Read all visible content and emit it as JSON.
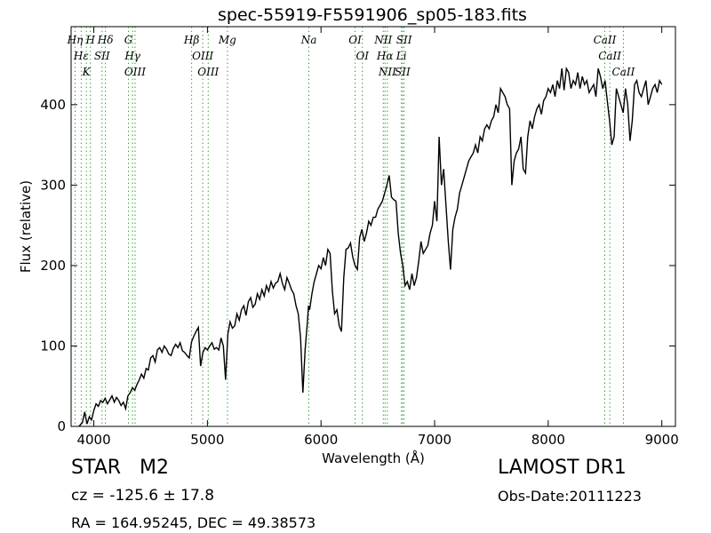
{
  "chart_data": {
    "type": "line",
    "title": "spec-55919-F5591906_sp05-183.fits",
    "xlabel": "Wavelength (Å)",
    "ylabel": "Flux (relative)",
    "xlim": [
      3800,
      9120
    ],
    "ylim": [
      0,
      497
    ],
    "xticks": [
      4000,
      5000,
      6000,
      7000,
      8000,
      9000
    ],
    "yticks": [
      0,
      100,
      200,
      300,
      400
    ],
    "grid": false,
    "line_color": "#000000",
    "marker_color": "#33aa33",
    "series": [
      {
        "x": [
          3870,
          3900,
          3920,
          3940,
          3960,
          3980,
          4000,
          4020,
          4040,
          4060,
          4080,
          4100,
          4120,
          4140,
          4160,
          4180,
          4200,
          4220,
          4240,
          4260,
          4280,
          4300,
          4320,
          4340,
          4360,
          4380,
          4400,
          4420,
          4440,
          4460,
          4480,
          4500,
          4520,
          4540,
          4560,
          4580,
          4600,
          4620,
          4640,
          4660,
          4680,
          4700,
          4720,
          4740,
          4760,
          4780,
          4800,
          4820,
          4840,
          4860,
          4880,
          4900,
          4920,
          4940,
          4960,
          4980,
          5000,
          5020,
          5040,
          5060,
          5080,
          5100,
          5120,
          5140,
          5160,
          5180,
          5200,
          5220,
          5240,
          5260,
          5280,
          5300,
          5320,
          5340,
          5360,
          5380,
          5400,
          5420,
          5440,
          5460,
          5480,
          5500,
          5520,
          5540,
          5560,
          5580,
          5600,
          5620,
          5640,
          5660,
          5680,
          5700,
          5720,
          5740,
          5760,
          5780,
          5800,
          5820,
          5840,
          5860,
          5880,
          5890,
          5900,
          5910,
          5920,
          5940,
          5960,
          5980,
          6000,
          6020,
          6040,
          6060,
          6080,
          6100,
          6120,
          6140,
          6160,
          6180,
          6200,
          6220,
          6240,
          6260,
          6280,
          6300,
          6320,
          6340,
          6360,
          6380,
          6400,
          6420,
          6440,
          6460,
          6480,
          6500,
          6520,
          6540,
          6560,
          6580,
          6600,
          6620,
          6640,
          6660,
          6680,
          6700,
          6720,
          6740,
          6760,
          6780,
          6800,
          6820,
          6840,
          6860,
          6880,
          6900,
          6920,
          6940,
          6960,
          6980,
          7000,
          7020,
          7040,
          7060,
          7080,
          7100,
          7120,
          7140,
          7160,
          7180,
          7200,
          7220,
          7240,
          7260,
          7280,
          7300,
          7320,
          7340,
          7360,
          7380,
          7400,
          7420,
          7440,
          7460,
          7480,
          7500,
          7520,
          7540,
          7560,
          7580,
          7600,
          7620,
          7640,
          7660,
          7680,
          7700,
          7720,
          7740,
          7760,
          7780,
          7800,
          7820,
          7840,
          7860,
          7880,
          7900,
          7920,
          7940,
          7960,
          7980,
          8000,
          8020,
          8040,
          8060,
          8080,
          8100,
          8120,
          8140,
          8160,
          8180,
          8200,
          8220,
          8240,
          8260,
          8280,
          8300,
          8320,
          8340,
          8360,
          8380,
          8400,
          8420,
          8440,
          8460,
          8480,
          8500,
          8520,
          8540,
          8560,
          8580,
          8600,
          8620,
          8640,
          8660,
          8680,
          8700,
          8720,
          8740,
          8760,
          8780,
          8800,
          8820,
          8840,
          8860,
          8880,
          8900,
          8920,
          8940,
          8960,
          8980,
          9000
        ],
        "y": [
          0,
          5,
          18,
          3,
          12,
          8,
          20,
          28,
          25,
          32,
          30,
          35,
          28,
          33,
          38,
          30,
          36,
          32,
          26,
          30,
          22,
          38,
          42,
          48,
          45,
          52,
          58,
          65,
          60,
          72,
          70,
          85,
          88,
          80,
          95,
          98,
          92,
          100,
          96,
          90,
          88,
          97,
          102,
          98,
          104,
          94,
          92,
          88,
          85,
          105,
          112,
          118,
          123,
          75,
          92,
          98,
          95,
          100,
          104,
          96,
          98,
          95,
          110,
          100,
          58,
          115,
          130,
          122,
          125,
          140,
          132,
          145,
          150,
          138,
          155,
          160,
          148,
          152,
          165,
          158,
          170,
          162,
          175,
          168,
          180,
          172,
          178,
          180,
          190,
          178,
          170,
          185,
          178,
          170,
          165,
          150,
          140,
          110,
          42,
          95,
          130,
          150,
          145,
          155,
          165,
          180,
          190,
          200,
          196,
          210,
          200,
          220,
          215,
          168,
          140,
          145,
          125,
          118,
          185,
          220,
          222,
          228,
          210,
          200,
          195,
          235,
          245,
          230,
          240,
          255,
          250,
          260,
          260,
          270,
          275,
          280,
          290,
          300,
          312,
          285,
          282,
          280,
          240,
          215,
          200,
          175,
          180,
          170,
          190,
          175,
          185,
          205,
          230,
          215,
          220,
          225,
          240,
          250,
          280,
          255,
          360,
          300,
          320,
          275,
          230,
          195,
          245,
          260,
          270,
          290,
          300,
          310,
          320,
          330,
          335,
          340,
          350,
          340,
          360,
          355,
          370,
          375,
          370,
          380,
          385,
          400,
          390,
          420,
          415,
          410,
          400,
          395,
          300,
          330,
          340,
          345,
          360,
          320,
          315,
          360,
          380,
          370,
          385,
          395,
          400,
          388,
          405,
          410,
          420,
          415,
          425,
          410,
          430,
          420,
          445,
          418,
          445,
          440,
          420,
          430,
          425,
          440,
          420,
          435,
          425,
          430,
          415,
          420,
          425,
          410,
          445,
          435,
          420,
          430,
          405,
          380,
          350,
          360,
          420,
          410,
          400,
          390,
          420,
          400,
          355,
          380,
          425,
          430,
          415,
          410,
          420,
          430,
          400,
          410,
          420,
          425,
          415,
          430,
          425
        ],
        "color": "#000000"
      }
    ],
    "lines": [
      {
        "label": "Hη",
        "x": 3835
      },
      {
        "label": "Hε",
        "x": 3889
      },
      {
        "label": "K",
        "x": 3934
      },
      {
        "label": "H",
        "x": 3970
      },
      {
        "label": "SII",
        "x": 4072
      },
      {
        "label": "Hδ",
        "x": 4102
      },
      {
        "label": "G",
        "x": 4305
      },
      {
        "label": "Hγ",
        "x": 4341
      },
      {
        "label": "OIII",
        "x": 4363
      },
      {
        "label": "Hβ",
        "x": 4861
      },
      {
        "label": "OIII",
        "x": 4959
      },
      {
        "label": "OIII",
        "x": 5007
      },
      {
        "label": "Mg",
        "x": 5176
      },
      {
        "label": "Na",
        "x": 5893
      },
      {
        "label": "OI",
        "x": 6300
      },
      {
        "label": "OI",
        "x": 6364
      },
      {
        "label": "NII",
        "x": 6548
      },
      {
        "label": "Hα",
        "x": 6563
      },
      {
        "label": "NII",
        "x": 6584
      },
      {
        "label": "Li",
        "x": 6708
      },
      {
        "label": "SII",
        "x": 6717
      },
      {
        "label": "SII",
        "x": 6731
      },
      {
        "label": "CaII",
        "x": 8498
      },
      {
        "label": "CaII",
        "x": 8542
      },
      {
        "label": "CaII",
        "x": 8662
      }
    ]
  },
  "info": {
    "object": "STAR   M2",
    "survey": "LAMOST DR1",
    "cz": "cz = -125.6 ± 17.8",
    "obs_date": "Obs-Date:20111223",
    "radec": "RA = 164.95245, DEC = 49.38573"
  }
}
